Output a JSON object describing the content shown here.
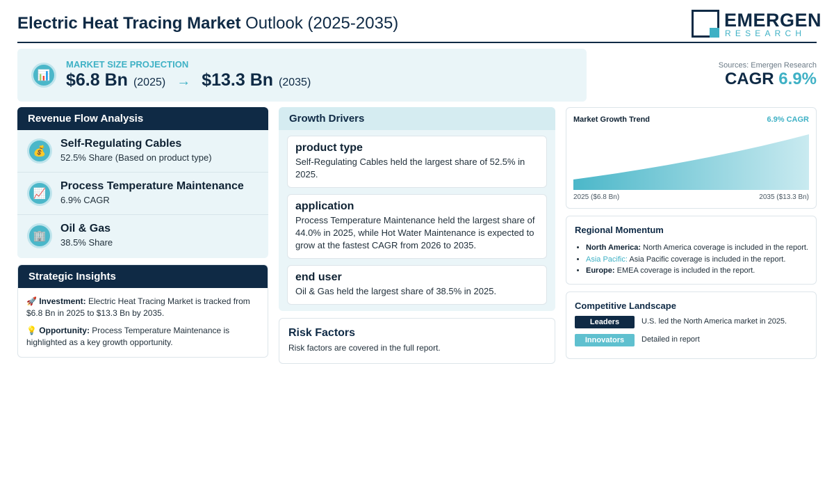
{
  "header": {
    "title_bold": "Electric Heat Tracing Market",
    "title_rest": "Outlook (2025-2035)",
    "logo_main": "EMERGEN",
    "logo_sub": "RESEARCH"
  },
  "projection": {
    "label": "MARKET SIZE PROJECTION",
    "icon": "bar-chart-icon",
    "start_value": "$6.8 Bn",
    "start_year": "(2025)",
    "arrow": "→",
    "end_value": "$13.3 Bn",
    "end_year": "(2035)"
  },
  "summary": {
    "sources": "Sources: Emergen Research",
    "cagr_label": "CAGR",
    "cagr_value": "6.9%"
  },
  "revenue_flow": {
    "title": "Revenue Flow Analysis",
    "items": [
      {
        "icon": "money-bag-icon",
        "glyph": "💰",
        "title": "Self-Regulating Cables",
        "subtitle": "52.5% Share (Based on product type)"
      },
      {
        "icon": "chart-up-icon",
        "glyph": "📈",
        "title": "Process Temperature Maintenance",
        "subtitle": "6.9% CAGR"
      },
      {
        "icon": "building-icon",
        "glyph": "🏢",
        "title": "Oil & Gas",
        "subtitle": "38.5% Share"
      }
    ]
  },
  "strategic_insights": {
    "title": "Strategic Insights",
    "investment_icon": "🚀",
    "investment_label": "Investment:",
    "investment_text": "Electric Heat Tracing Market is tracked from $6.8 Bn in 2025 to $13.3 Bn by 2035.",
    "opportunity_icon": "💡",
    "opportunity_label": "Opportunity:",
    "opportunity_text": "Process Temperature Maintenance is highlighted as a key growth opportunity."
  },
  "growth_drivers": {
    "title": "Growth Drivers",
    "items": [
      {
        "heading": "product type",
        "body": "Self-Regulating Cables held the largest share of 52.5% in 2025."
      },
      {
        "heading": "application",
        "body": "Process Temperature Maintenance held the largest share of 44.0% in 2025, while Hot Water Maintenance is expected to grow at the fastest CAGR from 2026 to 2035."
      },
      {
        "heading": "end user",
        "body": "Oil & Gas held the largest share of 38.5% in 2025."
      }
    ]
  },
  "risk_factors": {
    "title": "Risk Factors",
    "body": "Risk factors are covered in the full report."
  },
  "growth_trend": {
    "title": "Market Growth Trend",
    "cagr_label": "6.9% CAGR",
    "left_label": "2025 ($6.8 Bn)",
    "right_label": "2035 ($13.3 Bn)"
  },
  "chart_data": {
    "type": "area",
    "title": "Market Growth Trend",
    "x": [
      2025,
      2035
    ],
    "x_labels": [
      "2025 ($6.8 Bn)",
      "2035 ($13.3 Bn)"
    ],
    "values": [
      6.8,
      13.3
    ],
    "grid": false,
    "color": "#4bb7c9"
  },
  "regional_momentum": {
    "title": "Regional Momentum",
    "items": [
      {
        "region": "North America:",
        "text": "North America coverage is included in the report."
      },
      {
        "region": "Asia Pacific:",
        "text": "Asia Pacific coverage is included in the report."
      },
      {
        "region": "Europe:",
        "text": "EMEA coverage is included in the report."
      }
    ]
  },
  "competitive_landscape": {
    "title": "Competitive Landscape",
    "rows": [
      {
        "tag": "Leaders",
        "text": "U.S. led the North America market in 2025."
      },
      {
        "tag": "Innovators",
        "text": "Detailed in report"
      }
    ]
  },
  "colors": {
    "navy": "#0f2a45",
    "teal": "#3fb1c5",
    "panel": "#eaf5f8"
  }
}
